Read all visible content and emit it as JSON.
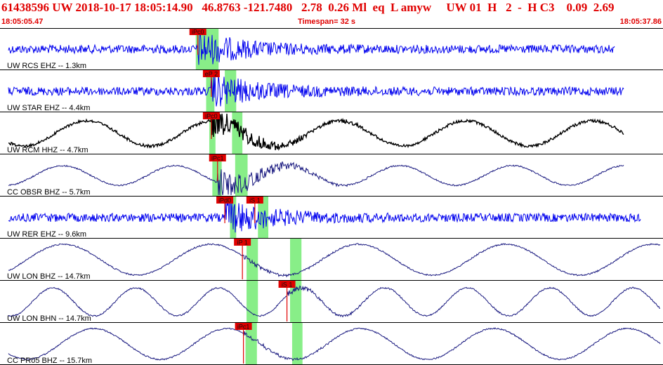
{
  "header": {
    "title": "61438596 UW 2018-10-17 18:05:14.90   46.8763 -121.7480   2.78  0.26 Ml  eq  L amyw     UW 01  H   2  -  H C3    0.09  2.69",
    "start_time": "18:05:05.47",
    "timespan": "Timespan=  32 s",
    "end_time": "18:05:37.86"
  },
  "colors": {
    "header_text": "#e00000",
    "pick_fill": "#e00000",
    "pick_window": "#88ee88",
    "trace_blue": "#0000ee",
    "trace_black": "#000000",
    "trace_navy": "#1a1a80",
    "background": "#ffffff"
  },
  "chart_data": {
    "type": "seismogram",
    "time_range_s": [
      0,
      32
    ],
    "traces": [
      {
        "label": "UW RCS EHZ -- 1.3km",
        "color": "blue",
        "signal": "noise",
        "picks": [
          {
            "label": "iPc0",
            "t": 9.55
          }
        ],
        "windows": [
          [
            9.45,
            10.55
          ]
        ]
      },
      {
        "label": "UW STAR EHZ -- 4.4km",
        "color": "blue",
        "signal": "noise",
        "picks": [
          {
            "label": "eP 2",
            "t": 10.2
          }
        ],
        "windows": [
          [
            9.95,
            10.35
          ],
          [
            10.85,
            11.4
          ]
        ]
      },
      {
        "label": "UW RCM HHZ -- 4.7km",
        "color": "black",
        "signal": "wave",
        "picks": [
          {
            "label": "iPc0",
            "t": 10.2
          }
        ],
        "windows": [
          [
            10.1,
            10.4
          ],
          [
            11.2,
            11.7
          ]
        ]
      },
      {
        "label": "CC OBSR BHZ -- 5.7km",
        "color": "navy",
        "signal": "wave",
        "picks": [
          {
            "label": "iPc1",
            "t": 10.5
          }
        ],
        "windows": [
          [
            10.25,
            10.7
          ],
          [
            11.35,
            11.95
          ]
        ]
      },
      {
        "label": "UW RER EHZ -- 9.6km",
        "color": "blue",
        "signal": "noise",
        "picks": [
          {
            "label": "iPd0",
            "t": 10.85
          },
          {
            "label": "iS 1",
            "t": 12.3
          }
        ],
        "windows": [
          [
            11.1,
            11.4
          ],
          [
            12.45,
            12.95
          ]
        ]
      },
      {
        "label": "UW LON BHZ -- 14.7km",
        "color": "navy",
        "signal": "wave",
        "picks": [
          {
            "label": "iP 1",
            "t": 11.7
          }
        ],
        "windows": [
          [
            11.9,
            12.45
          ],
          [
            14.0,
            14.55
          ]
        ]
      },
      {
        "label": "UW LON BHN -- 14.7km",
        "color": "navy",
        "signal": "wave",
        "picks": [
          {
            "label": "iS 1",
            "t": 13.85
          }
        ],
        "windows": [
          [
            11.9,
            12.45
          ],
          [
            14.0,
            14.55
          ]
        ]
      },
      {
        "label": "CC PR05 BHZ -- 15.7km",
        "color": "navy",
        "signal": "wave",
        "picks": [
          {
            "label": "iPc1",
            "t": 11.75
          }
        ],
        "windows": [
          [
            11.85,
            12.4
          ],
          [
            14.1,
            14.6
          ]
        ]
      }
    ]
  }
}
